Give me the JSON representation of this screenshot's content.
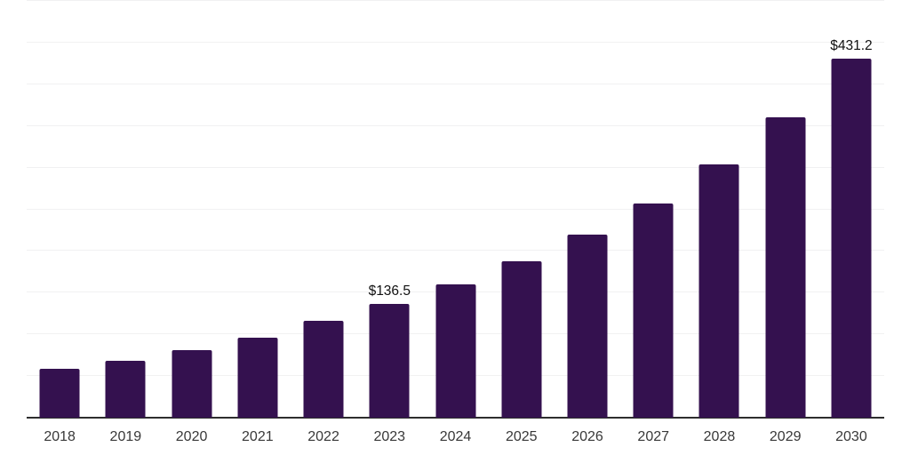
{
  "chart_data": {
    "type": "bar",
    "title": "",
    "xlabel": "",
    "ylabel": "",
    "categories": [
      "2018",
      "2019",
      "2020",
      "2021",
      "2022",
      "2023",
      "2024",
      "2025",
      "2026",
      "2027",
      "2028",
      "2029",
      "2030"
    ],
    "values": [
      58.5,
      68.4,
      81.4,
      95.7,
      116.0,
      136.5,
      160.0,
      187.2,
      219.7,
      257.0,
      304.3,
      360.6,
      431.2
    ],
    "value_labels": [
      "",
      "",
      "",
      "",
      "",
      "$136.5",
      "",
      "",
      "",
      "",
      "",
      "",
      "$431.2"
    ],
    "ylim": [
      0,
      500
    ],
    "gridline_step": 50,
    "grid": "horizontal",
    "legend": "none",
    "y_axis_labels_visible": false,
    "colors": {
      "bar": "#34114f",
      "gridline": "#f1f1f2",
      "axis_line": "#2e2e2e",
      "tick_label": "#383838",
      "value_label": "#111111",
      "background": "#ffffff"
    }
  }
}
